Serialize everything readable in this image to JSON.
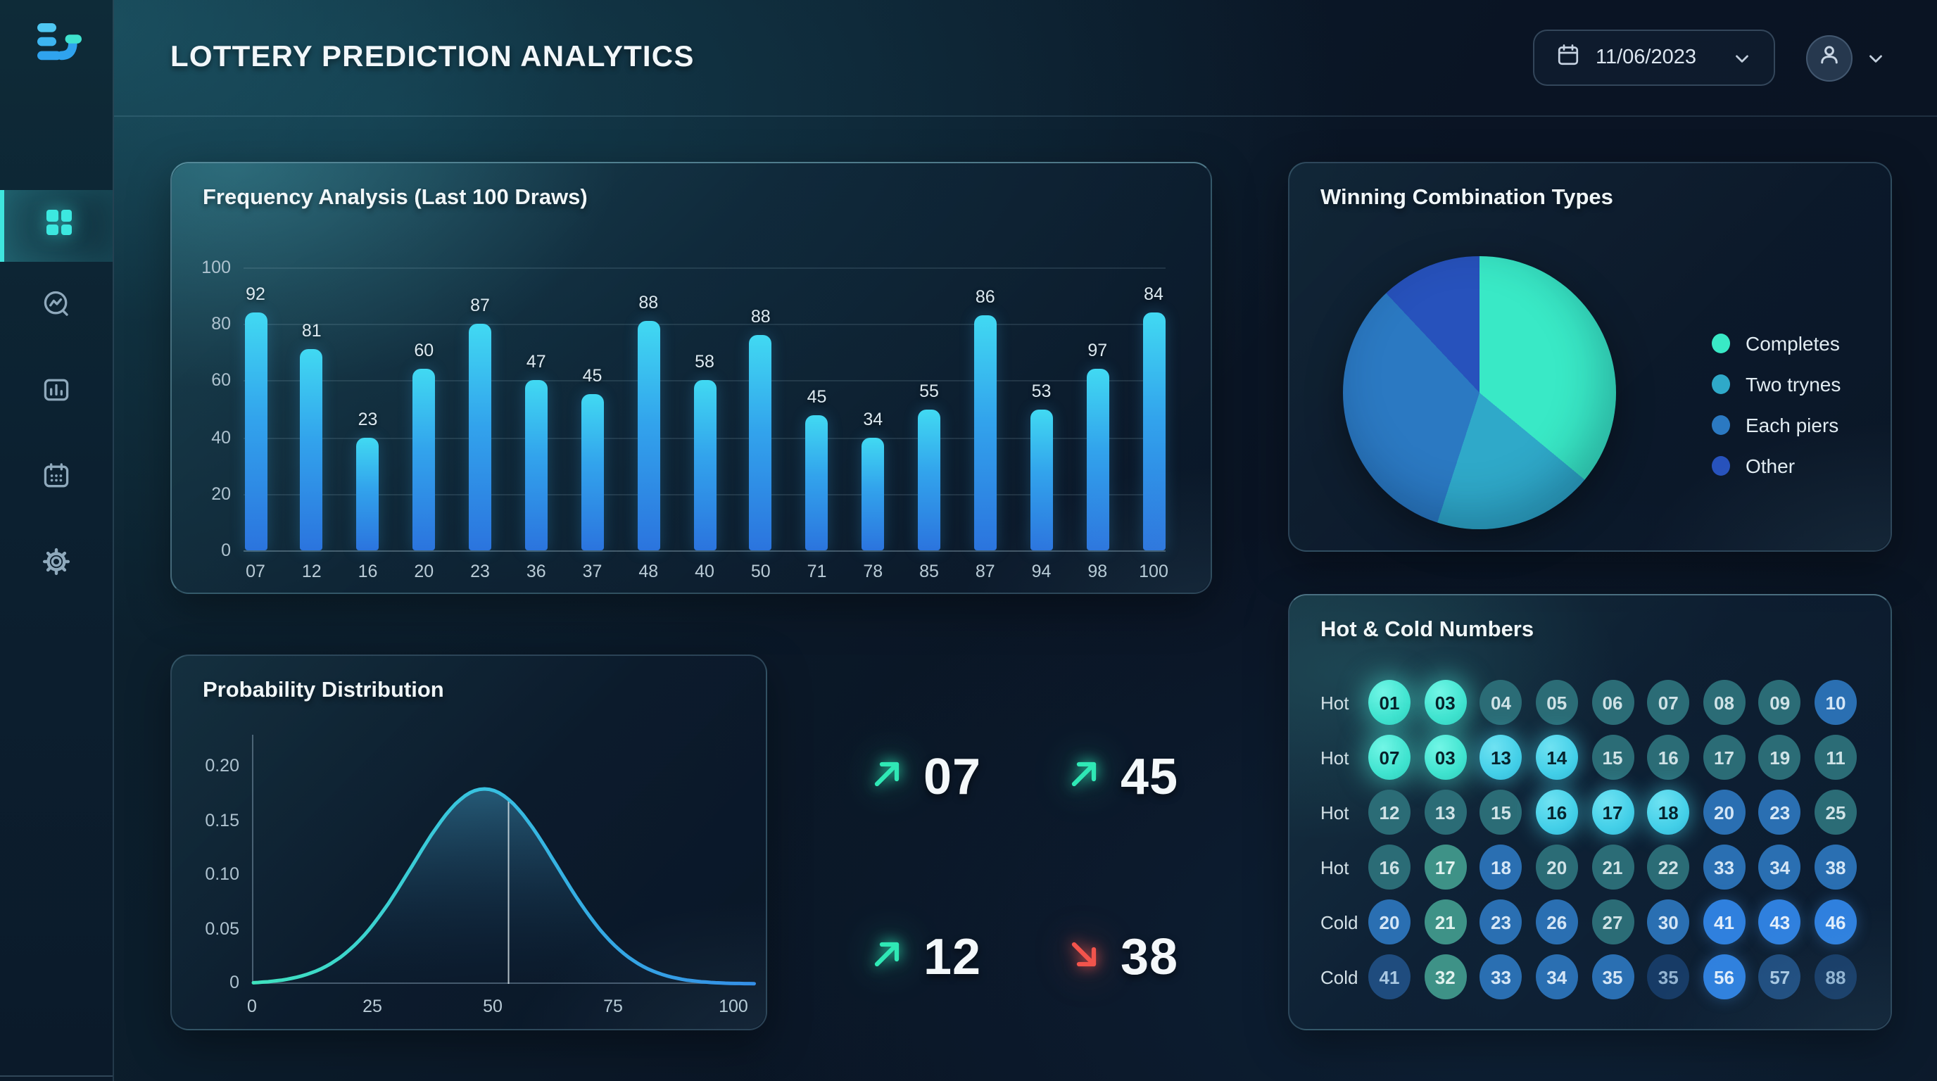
{
  "header": {
    "title": "LOTTERY PREDICTION ANALYTICS",
    "date_picker": {
      "value": "11/06/2023"
    }
  },
  "sidebar": {
    "items": [
      {
        "id": "dashboard",
        "active": true
      },
      {
        "id": "trends",
        "active": false
      },
      {
        "id": "statistics",
        "active": false
      },
      {
        "id": "calendar",
        "active": false
      },
      {
        "id": "settings",
        "active": false
      }
    ]
  },
  "chart_data": [
    {
      "type": "bar",
      "title": "Frequency Analysis (Last 100 Draws)",
      "categories": [
        "07",
        "12",
        "16",
        "20",
        "23",
        "36",
        "37",
        "48",
        "40",
        "50",
        "71",
        "78",
        "85",
        "87",
        "94",
        "98",
        "100"
      ],
      "values": [
        92,
        81,
        23,
        60,
        87,
        47,
        45,
        88,
        58,
        88,
        45,
        34,
        55,
        86,
        53,
        97,
        84
      ],
      "bar_heights_visual": [
        84,
        71,
        40,
        64,
        80,
        60,
        55,
        81,
        60,
        76,
        48,
        40,
        50,
        83,
        50,
        64,
        84
      ],
      "y_ticks": [
        100,
        80,
        60,
        40,
        20,
        0
      ],
      "ylim": [
        0,
        100
      ],
      "grid": true,
      "bar_color_top": "#41D9F2",
      "bar_color_bottom": "#2B74DE"
    },
    {
      "type": "pie",
      "title": "Winning Combination Types",
      "slices": [
        {
          "label": "Completes",
          "value": 36,
          "color": "#39E9C6"
        },
        {
          "label": "Two trynes",
          "value": 19,
          "color": "#2FA9C9"
        },
        {
          "label": "Each piers",
          "value": 33,
          "color": "#2B79C2"
        },
        {
          "label": "Other",
          "value": 12,
          "color": "#2752BC"
        }
      ],
      "start_angle_deg": 0,
      "direction": "clockwise",
      "legend_position": "right"
    },
    {
      "type": "area",
      "title": "Probability Distribution",
      "x_ticks": [
        0,
        25,
        50,
        75,
        100
      ],
      "y_ticks": [
        {
          "label": "0.20",
          "v": 0.2
        },
        {
          "label": "0.15",
          "v": 0.15
        },
        {
          "label": "0.10",
          "v": 0.1
        },
        {
          "label": "0.05",
          "v": 0.05
        },
        {
          "label": "0",
          "v": 0
        }
      ],
      "xlim": [
        0,
        104
      ],
      "ylim": [
        0,
        0.23
      ],
      "curve": {
        "shape": "gaussian",
        "peak_x": 48,
        "peak_y": 0.18,
        "sigma": 15
      },
      "marker_x": 53,
      "stroke_left": "#3FE3BE",
      "stroke_right": "#2F8BE8"
    }
  ],
  "trend_indicators": {
    "up_color": "#2FE8B5",
    "down_color": "#F2544C",
    "items": [
      {
        "value": "07",
        "direction": "up"
      },
      {
        "value": "45",
        "direction": "up"
      },
      {
        "value": "12",
        "direction": "up"
      },
      {
        "value": "38",
        "direction": "down"
      }
    ]
  },
  "hot_cold": {
    "title": "Hot & Cold Numbers",
    "rows": [
      {
        "label": "Hot",
        "cells": [
          {
            "n": "01",
            "s": "hot-bright"
          },
          {
            "n": "03",
            "s": "hot-bright"
          },
          {
            "n": "04",
            "s": "teal-dim"
          },
          {
            "n": "05",
            "s": "teal-dim"
          },
          {
            "n": "06",
            "s": "teal-dim"
          },
          {
            "n": "07",
            "s": "teal-dim"
          },
          {
            "n": "08",
            "s": "teal-dim"
          },
          {
            "n": "09",
            "s": "teal-dim"
          },
          {
            "n": "10",
            "s": "blue"
          }
        ]
      },
      {
        "label": "Hot",
        "cells": [
          {
            "n": "07",
            "s": "hot-bright"
          },
          {
            "n": "03",
            "s": "hot-bright"
          },
          {
            "n": "13",
            "s": "cyan-bright"
          },
          {
            "n": "14",
            "s": "cyan-bright"
          },
          {
            "n": "15",
            "s": "teal-dim"
          },
          {
            "n": "16",
            "s": "teal-dim"
          },
          {
            "n": "17",
            "s": "teal-dim"
          },
          {
            "n": "19",
            "s": "teal-dim"
          },
          {
            "n": "11",
            "s": "teal-dim"
          }
        ]
      },
      {
        "label": "Hot",
        "cells": [
          {
            "n": "12",
            "s": "teal-dim"
          },
          {
            "n": "13",
            "s": "teal-dim"
          },
          {
            "n": "15",
            "s": "teal-dim"
          },
          {
            "n": "16",
            "s": "cyan-bright"
          },
          {
            "n": "17",
            "s": "cyan-bright"
          },
          {
            "n": "18",
            "s": "cyan-bright"
          },
          {
            "n": "20",
            "s": "blue"
          },
          {
            "n": "23",
            "s": "blue"
          },
          {
            "n": "25",
            "s": "teal-dim"
          }
        ]
      },
      {
        "label": "Hot",
        "cells": [
          {
            "n": "16",
            "s": "teal-dim"
          },
          {
            "n": "17",
            "s": "green-teal"
          },
          {
            "n": "18",
            "s": "blue"
          },
          {
            "n": "20",
            "s": "teal-dim"
          },
          {
            "n": "21",
            "s": "teal-dim"
          },
          {
            "n": "22",
            "s": "teal-dim"
          },
          {
            "n": "33",
            "s": "blue"
          },
          {
            "n": "34",
            "s": "blue"
          },
          {
            "n": "38",
            "s": "blue"
          }
        ]
      },
      {
        "label": "Cold",
        "cells": [
          {
            "n": "20",
            "s": "blue"
          },
          {
            "n": "21",
            "s": "green-teal"
          },
          {
            "n": "23",
            "s": "blue"
          },
          {
            "n": "26",
            "s": "blue"
          },
          {
            "n": "27",
            "s": "teal-dim"
          },
          {
            "n": "30",
            "s": "blue"
          },
          {
            "n": "41",
            "s": "blue-bright"
          },
          {
            "n": "43",
            "s": "blue-bright"
          },
          {
            "n": "46",
            "s": "blue-bright"
          }
        ]
      },
      {
        "label": "Cold",
        "cells": [
          {
            "n": "41",
            "s": "navy"
          },
          {
            "n": "32",
            "s": "green-teal"
          },
          {
            "n": "33",
            "s": "blue"
          },
          {
            "n": "34",
            "s": "blue"
          },
          {
            "n": "35",
            "s": "blue"
          },
          {
            "n": "35",
            "s": "navy-dark"
          },
          {
            "n": "56",
            "s": "blue-bright"
          },
          {
            "n": "57",
            "s": "navy"
          },
          {
            "n": "88",
            "s": "navy-dark"
          }
        ]
      }
    ]
  }
}
